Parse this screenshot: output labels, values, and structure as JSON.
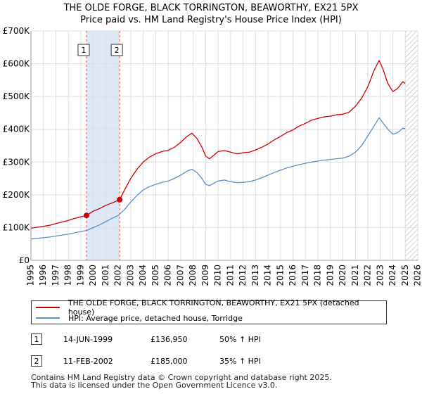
{
  "title_line1": "THE OLDE FORGE, BLACK TORRINGTON, BEAWORTHY, EX21 5PX",
  "title_line2": "Price paid vs. HM Land Registry's House Price Index (HPI)",
  "legend": {
    "property": "THE OLDE FORGE, BLACK TORRINGTON, BEAWORTHY, EX21 5PX (detached house)",
    "hpi": "HPI: Average price, detached house, Torridge"
  },
  "sales": [
    {
      "num": "1",
      "date": "14-JUN-1999",
      "price": "£136,950",
      "hpi": "50% ↑ HPI"
    },
    {
      "num": "2",
      "date": "11-FEB-2002",
      "price": "£185,000",
      "hpi": "35% ↑ HPI"
    }
  ],
  "footer_line1": "Contains HM Land Registry data © Crown copyright and database right 2025.",
  "footer_line2": "This data is licensed under the Open Government Licence v3.0.",
  "colors": {
    "property": "#cc0000",
    "hpi": "#5b8dc9",
    "shade": "#dde8f7",
    "grid": "#dddddd",
    "vline": "#e06060"
  },
  "chart_data": {
    "type": "line",
    "ylabel": "",
    "xlabel": "",
    "xlim": [
      1995,
      2026
    ],
    "ylim": [
      0,
      700000
    ],
    "yticks": [
      0,
      100000,
      200000,
      300000,
      400000,
      500000,
      600000,
      700000
    ],
    "ytick_labels": [
      "£0",
      "£100K",
      "£200K",
      "£300K",
      "£400K",
      "£500K",
      "£600K",
      "£700K"
    ],
    "xticks": [
      1995,
      1996,
      1997,
      1998,
      1999,
      2000,
      2001,
      2002,
      2003,
      2004,
      2005,
      2006,
      2007,
      2008,
      2009,
      2010,
      2011,
      2012,
      2013,
      2014,
      2015,
      2016,
      2017,
      2018,
      2019,
      2020,
      2021,
      2022,
      2023,
      2024,
      2025,
      2026
    ],
    "shaded_span": [
      1999.45,
      2002.11
    ],
    "hatch_from": 2025.0,
    "markers": [
      {
        "label": "1",
        "x": 1999.45,
        "y": 136950
      },
      {
        "label": "2",
        "x": 2002.11,
        "y": 185000
      }
    ],
    "series": [
      {
        "name": "THE OLDE FORGE, BLACK TORRINGTON, BEAWORTHY, EX21 5PX (detached house)",
        "x": [
          1995.0,
          1995.5,
          1996.0,
          1996.5,
          1997.0,
          1997.5,
          1998.0,
          1998.5,
          1999.0,
          1999.45,
          2000.0,
          2000.5,
          2001.0,
          2001.5,
          2002.11,
          2002.5,
          2003.0,
          2003.5,
          2004.0,
          2004.5,
          2005.0,
          2005.5,
          2006.0,
          2006.5,
          2007.0,
          2007.5,
          2007.9,
          2008.3,
          2008.7,
          2009.0,
          2009.3,
          2009.7,
          2010.0,
          2010.5,
          2011.0,
          2011.5,
          2012.0,
          2012.5,
          2013.0,
          2013.5,
          2014.0,
          2014.5,
          2015.0,
          2015.5,
          2016.0,
          2016.5,
          2017.0,
          2017.5,
          2018.0,
          2018.5,
          2019.0,
          2019.5,
          2020.0,
          2020.5,
          2021.0,
          2021.5,
          2022.0,
          2022.5,
          2022.9,
          2023.2,
          2023.6,
          2024.0,
          2024.4,
          2024.8,
          2025.0
        ],
        "values": [
          98000,
          101000,
          104000,
          107000,
          112000,
          117000,
          122000,
          128000,
          133000,
          136950,
          150000,
          158000,
          168000,
          175000,
          185000,
          215000,
          250000,
          278000,
          300000,
          315000,
          325000,
          332000,
          336000,
          345000,
          360000,
          378000,
          388000,
          372000,
          345000,
          318000,
          310000,
          322000,
          332000,
          335000,
          330000,
          325000,
          328000,
          330000,
          337000,
          345000,
          355000,
          368000,
          378000,
          390000,
          398000,
          410000,
          418000,
          428000,
          433000,
          438000,
          440000,
          444000,
          446000,
          452000,
          470000,
          495000,
          530000,
          580000,
          610000,
          585000,
          540000,
          515000,
          525000,
          545000,
          540000
        ]
      },
      {
        "name": "HPI: Average price, detached house, Torridge",
        "x": [
          1995.0,
          1995.5,
          1996.0,
          1996.5,
          1997.0,
          1997.5,
          1998.0,
          1998.5,
          1999.0,
          1999.45,
          2000.0,
          2000.5,
          2001.0,
          2001.5,
          2002.0,
          2002.5,
          2003.0,
          2003.5,
          2004.0,
          2004.5,
          2005.0,
          2005.5,
          2006.0,
          2006.5,
          2007.0,
          2007.5,
          2007.9,
          2008.3,
          2008.7,
          2009.0,
          2009.3,
          2009.7,
          2010.0,
          2010.5,
          2011.0,
          2011.5,
          2012.0,
          2012.5,
          2013.0,
          2013.5,
          2014.0,
          2014.5,
          2015.0,
          2015.5,
          2016.0,
          2016.5,
          2017.0,
          2017.5,
          2018.0,
          2018.5,
          2019.0,
          2019.5,
          2020.0,
          2020.5,
          2021.0,
          2021.5,
          2022.0,
          2022.5,
          2022.9,
          2023.2,
          2023.6,
          2024.0,
          2024.4,
          2024.8,
          2025.0
        ],
        "values": [
          65000,
          67000,
          69000,
          71000,
          74000,
          77000,
          80000,
          84000,
          88000,
          91000,
          100000,
          108000,
          118000,
          128000,
          137000,
          155000,
          178000,
          198000,
          215000,
          225000,
          232000,
          238000,
          242000,
          250000,
          260000,
          272000,
          278000,
          268000,
          250000,
          232000,
          228000,
          236000,
          242000,
          245000,
          240000,
          237000,
          238000,
          240000,
          245000,
          252000,
          260000,
          268000,
          275000,
          282000,
          287000,
          292000,
          296000,
          300000,
          303000,
          306000,
          308000,
          310000,
          312000,
          318000,
          330000,
          350000,
          380000,
          410000,
          435000,
          420000,
          400000,
          385000,
          390000,
          403000,
          402000
        ]
      }
    ]
  }
}
